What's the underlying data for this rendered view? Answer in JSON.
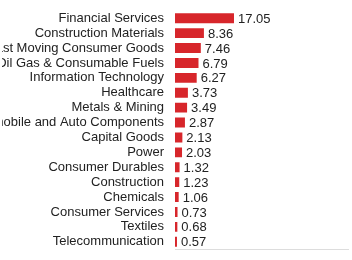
{
  "chart_data": {
    "type": "bar",
    "orientation": "horizontal",
    "categories": [
      "Financial Services",
      "Construction Materials",
      "Fast Moving Consumer Goods",
      "Oil Gas & Consumable Fuels",
      "Information Technology",
      "Healthcare",
      "Metals & Mining",
      "Automobile and Auto Components",
      "Capital Goods",
      "Power",
      "Consumer Durables",
      "Construction",
      "Chemicals",
      "Consumer Services",
      "Textiles",
      "Telecommunication"
    ],
    "values": [
      17.05,
      8.36,
      7.46,
      6.79,
      6.27,
      3.73,
      3.49,
      2.87,
      2.13,
      2.03,
      1.32,
      1.23,
      1.06,
      0.73,
      0.68,
      0.57
    ],
    "color": "#d7262b",
    "xlim": [
      0,
      50
    ],
    "grid": false,
    "data_labels": true,
    "tick_labels": "y"
  }
}
